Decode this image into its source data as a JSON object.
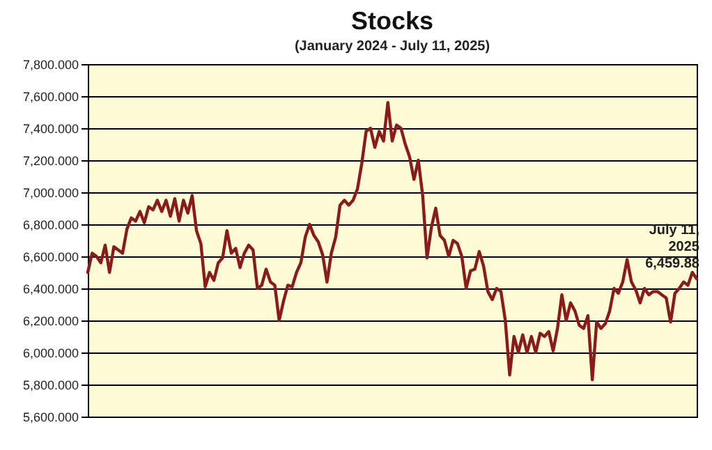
{
  "chart_data": {
    "type": "line",
    "title": "Stocks",
    "subtitle": "(January 2024 - July 11, 2025)",
    "categories": [
      null,
      null,
      null,
      null,
      null,
      null,
      null,
      null,
      null,
      null,
      null,
      null,
      null,
      null,
      null,
      null,
      null,
      null,
      null,
      null,
      null,
      null,
      null,
      null,
      null,
      null,
      null,
      null,
      null,
      null,
      null,
      null,
      null,
      null,
      null,
      null,
      null,
      null,
      null,
      null,
      null,
      null,
      null,
      null,
      null,
      null,
      null,
      null,
      null,
      null,
      null,
      null,
      null,
      null,
      null,
      null,
      null,
      null,
      null,
      null,
      null,
      null,
      null,
      null,
      null,
      null,
      null,
      null,
      null,
      null,
      null,
      null,
      null,
      null,
      null,
      null,
      null,
      null,
      null,
      null,
      null,
      null,
      null,
      null,
      null,
      null,
      null,
      null,
      null,
      null,
      null,
      null,
      null,
      null,
      null,
      null,
      null,
      null,
      null,
      null,
      null,
      null,
      null,
      null,
      null,
      null,
      null,
      null,
      null,
      null,
      null,
      null,
      null,
      null,
      null,
      null,
      null,
      null,
      null,
      null,
      null,
      null,
      null,
      null,
      null,
      null,
      null,
      null,
      null,
      null,
      null,
      null,
      null,
      null,
      null,
      null,
      null,
      null,
      null,
      null,
      null
    ],
    "series": [
      {
        "color": "#8b1a1a",
        "values": [
          6500,
          6620,
          6600,
          6560,
          6670,
          6500,
          6660,
          6640,
          6620,
          6770,
          6840,
          6820,
          6880,
          6810,
          6910,
          6890,
          6950,
          6880,
          6950,
          6850,
          6960,
          6820,
          6950,
          6870,
          6980,
          6760,
          6680,
          6410,
          6500,
          6450,
          6560,
          6590,
          6760,
          6620,
          6650,
          6530,
          6620,
          6670,
          6640,
          6400,
          6420,
          6520,
          6440,
          6420,
          6200,
          6320,
          6420,
          6410,
          6500,
          6560,
          6720,
          6800,
          6730,
          6690,
          6610,
          6440,
          6620,
          6720,
          6920,
          6950,
          6920,
          6950,
          7020,
          7180,
          7380,
          7400,
          7280,
          7380,
          7320,
          7560,
          7320,
          7420,
          7400,
          7300,
          7220,
          7080,
          7200,
          6980,
          6590,
          6780,
          6900,
          6730,
          6700,
          6600,
          6700,
          6680,
          6600,
          6400,
          6510,
          6520,
          6630,
          6540,
          6380,
          6330,
          6400,
          6380,
          6200,
          5860,
          6100,
          6000,
          6110,
          6000,
          6100,
          6000,
          6120,
          6100,
          6130,
          6010,
          6150,
          6360,
          6200,
          6310,
          6260,
          6170,
          6150,
          6230,
          5830,
          6190,
          6150,
          6180,
          6260,
          6400,
          6370,
          6440,
          6580,
          6440,
          6390,
          6310,
          6400,
          6360,
          6380,
          6380,
          6360,
          6340,
          6190,
          6370,
          6400,
          6440,
          6420,
          6500,
          6459.88
        ]
      }
    ],
    "ylim": [
      5600,
      7800
    ],
    "yticks": [
      {
        "value": 5600,
        "label": "5,600.000"
      },
      {
        "value": 5800,
        "label": "5,800.000"
      },
      {
        "value": 6000,
        "label": "6,000.000"
      },
      {
        "value": 6200,
        "label": "6,200.000"
      },
      {
        "value": 6400,
        "label": "6,400.000"
      },
      {
        "value": 6600,
        "label": "6,600.000"
      },
      {
        "value": 6800,
        "label": "6,800.000"
      },
      {
        "value": 7000,
        "label": "7,000.000"
      },
      {
        "value": 7200,
        "label": "7,200.000"
      },
      {
        "value": 7400,
        "label": "7,400.000"
      },
      {
        "value": 7600,
        "label": "7,600.000"
      },
      {
        "value": 7800,
        "label": "7,800.000"
      }
    ],
    "grid": "y",
    "tick_labels": "y",
    "line_style": "solid",
    "annotations": [
      "July 11,\n2025\n6,459.88"
    ]
  }
}
